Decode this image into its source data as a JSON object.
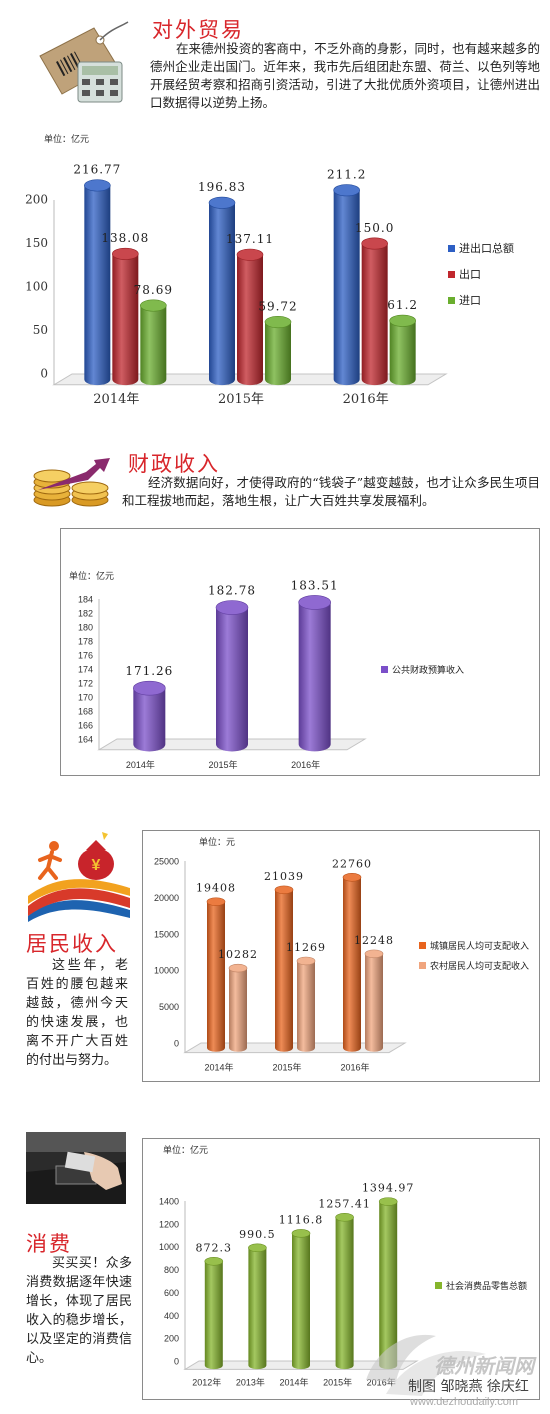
{
  "sections": {
    "trade": {
      "title": "对外贸易",
      "text": "在来德州投资的客商中，不乏外商的身影，同时，也有越来越多的德州企业走出国门。近年来，我市先后组团赴东盟、荷兰、以色列等地开展经贸考察和招商引资活动，引进了大批优质外资项目，让德州进出口数据得以逆势上扬。"
    },
    "fiscal": {
      "title": "财政收入",
      "text": "经济数据向好，才使得政府的“钱袋子”越变越鼓，也才让众多民生项目和工程拔地而起，落地生根，让广大百姓共享发展福利。"
    },
    "income": {
      "title": "居民收入",
      "text": "这些年，老百姓的腰包越来越鼓，德州今天的快速发展，也离不开广大百姓的付出与努力。"
    },
    "consume": {
      "title": "消费",
      "text": "买买买！众多消费数据逐年快速增长，体现了居民收入的稳步增长，以及坚定的消费信心。"
    }
  },
  "credit": "制图 邹晓燕 徐庆红",
  "watermark": {
    "name": "德州新闻网",
    "url": "www.dezhoudaily.com"
  },
  "chart_data": [
    {
      "type": "bar",
      "unit": "单位：亿元",
      "categories": [
        "2014年",
        "2015年",
        "2016年"
      ],
      "series": [
        {
          "name": "进出口总额",
          "values": [
            216.77,
            196.83,
            211.2
          ],
          "labels": [
            "216.77",
            "196.83",
            "211.2"
          ],
          "color": "#2d5fc4"
        },
        {
          "name": "出口",
          "values": [
            138.08,
            137.11,
            150.0
          ],
          "labels": [
            "138.08",
            "137.11",
            "150.0"
          ],
          "color": "#c0272d"
        },
        {
          "name": "进口",
          "values": [
            78.69,
            59.72,
            61.2
          ],
          "labels": [
            "78.69",
            "59.72",
            "61.2"
          ],
          "color": "#6aae2e"
        }
      ],
      "ylim": [
        0,
        200
      ],
      "yticks": [
        "0",
        "50",
        "100",
        "150",
        "200"
      ],
      "legend": "right"
    },
    {
      "type": "bar",
      "unit": "单位：亿元",
      "categories": [
        "2014年",
        "2015年",
        "2016年"
      ],
      "series": [
        {
          "name": "公共财政预算收入",
          "values": [
            171.26,
            182.78,
            183.51
          ],
          "labels": [
            "171.26",
            "182.78",
            "183.51"
          ],
          "color": "#7b4fc9"
        }
      ],
      "ylim": [
        164,
        184
      ],
      "yticks": [
        "164",
        "166",
        "168",
        "170",
        "172",
        "174",
        "176",
        "178",
        "180",
        "182",
        "184"
      ],
      "legend": "right"
    },
    {
      "type": "bar",
      "unit": "单位：元",
      "categories": [
        "2014年",
        "2015年",
        "2016年"
      ],
      "series": [
        {
          "name": "城镇居民人均可支配收入",
          "values": [
            19408,
            21039,
            22760
          ],
          "labels": [
            "19408",
            "21039",
            "22760"
          ],
          "color": "#e8641e"
        },
        {
          "name": "农村居民人均可支配收入",
          "values": [
            10282,
            11269,
            12248
          ],
          "labels": [
            "10282",
            "11269",
            "12248"
          ],
          "color": "#f0a57e"
        }
      ],
      "ylim": [
        0,
        25000
      ],
      "yticks": [
        "0",
        "5000",
        "10000",
        "15000",
        "20000",
        "25000"
      ],
      "legend": "right"
    },
    {
      "type": "bar",
      "unit": "单位：亿元",
      "categories": [
        "2012年",
        "2013年",
        "2014年",
        "2015年",
        "2016年"
      ],
      "series": [
        {
          "name": "社会消费品零售总额",
          "values": [
            872.3,
            990.5,
            1116.8,
            1257.41,
            1394.97
          ],
          "labels": [
            "872.3",
            "990.5",
            "1116.8",
            "1257.41",
            "1394.97"
          ],
          "color": "#86b52c"
        }
      ],
      "ylim": [
        0,
        1400
      ],
      "yticks": [
        "0",
        "200",
        "400",
        "600",
        "800",
        "1000",
        "1200",
        "1400"
      ],
      "legend": "right"
    }
  ]
}
